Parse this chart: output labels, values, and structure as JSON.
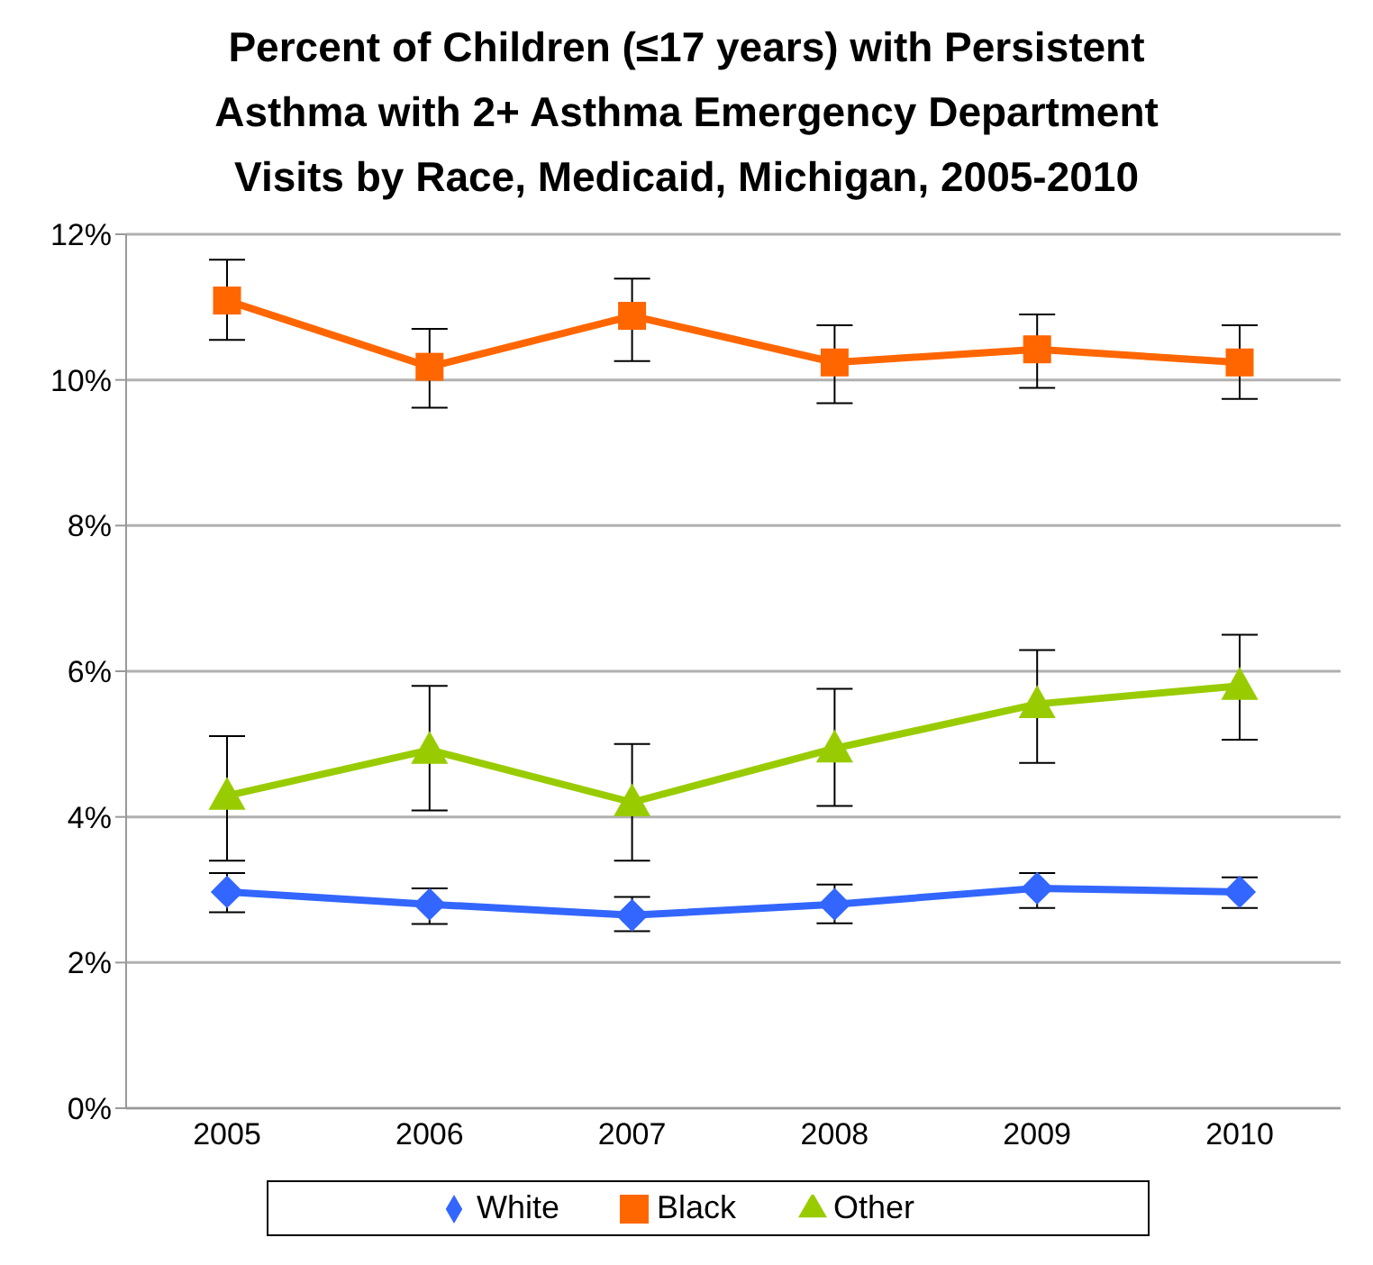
{
  "chart_data": {
    "type": "line",
    "title": "Percent of Children (≤17 years) with Persistent Asthma with 2+ Asthma Emergency Department Visits by Race, Medicaid, Michigan, 2005-2010",
    "categories": [
      "2005",
      "2006",
      "2007",
      "2008",
      "2009",
      "2010"
    ],
    "series": [
      {
        "name": "White",
        "color": "#3366ff",
        "marker": "diamond",
        "values": [
          2.97,
          2.8,
          2.65,
          2.8,
          3.02,
          2.97
        ],
        "errors": [
          [
            2.69,
            3.23
          ],
          [
            2.53,
            3.02
          ],
          [
            2.43,
            2.9
          ],
          [
            2.54,
            3.07
          ],
          [
            2.75,
            3.23
          ],
          [
            2.75,
            3.17
          ]
        ]
      },
      {
        "name": "Black",
        "color": "#ff6600",
        "marker": "square",
        "values": [
          11.09,
          10.18,
          10.88,
          10.24,
          10.42,
          10.24
        ],
        "errors": [
          [
            10.55,
            11.65
          ],
          [
            9.62,
            10.7
          ],
          [
            10.26,
            11.39
          ],
          [
            9.68,
            10.75
          ],
          [
            9.89,
            10.9
          ],
          [
            9.74,
            10.75
          ]
        ]
      },
      {
        "name": "Other",
        "color": "#99cc00",
        "marker": "triangle",
        "values": [
          4.29,
          4.92,
          4.2,
          4.94,
          5.55,
          5.8
        ],
        "errors": [
          [
            3.4,
            5.11
          ],
          [
            4.09,
            5.8
          ],
          [
            3.4,
            5.0
          ],
          [
            4.15,
            5.76
          ],
          [
            4.74,
            6.29
          ],
          [
            5.06,
            6.5
          ]
        ]
      }
    ],
    "ylim": [
      0,
      12
    ],
    "yticks": [
      {
        "value": 0,
        "label": "0%"
      },
      {
        "value": 2,
        "label": "2%"
      },
      {
        "value": 4,
        "label": "4%"
      },
      {
        "value": 6,
        "label": "6%"
      },
      {
        "value": 8,
        "label": "8%"
      },
      {
        "value": 10,
        "label": "10%"
      },
      {
        "value": 12,
        "label": "12%"
      }
    ],
    "grid": "y",
    "legend": "bottom",
    "line_style": "solid"
  }
}
